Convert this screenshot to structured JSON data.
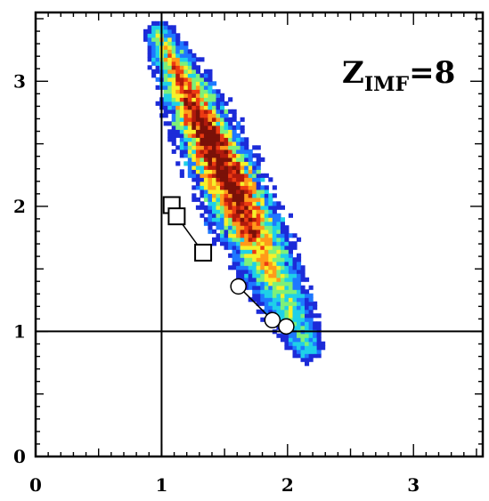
{
  "chart_data": {
    "type": "heatmap",
    "title": "",
    "xlabel": "",
    "ylabel": "",
    "xlim": [
      0,
      3.55
    ],
    "ylim": [
      0,
      3.55
    ],
    "x_ticks": [
      "0",
      "1",
      "2",
      "3"
    ],
    "y_ticks": [
      "0",
      "1",
      "2",
      "3"
    ],
    "reference_lines": {
      "x": 1,
      "y": 1
    },
    "annotation": {
      "main": "Z",
      "sub": "IMF",
      "tail": "=8",
      "position": "top-right"
    },
    "colormap": [
      "#1c2bd8",
      "#1e78ff",
      "#1fd0e8",
      "#7df07a",
      "#f6f02a",
      "#ff9a1a",
      "#ec3a12",
      "#b11a0c",
      "#7a1108"
    ],
    "density_axis": {
      "start": [
        0.97,
        3.35
      ],
      "end": [
        2.15,
        0.85
      ],
      "half_width": 0.19
    },
    "squares": {
      "color": "#000000",
      "points": [
        [
          1.08,
          2.01
        ],
        [
          1.12,
          1.92
        ],
        [
          1.33,
          1.63
        ]
      ]
    },
    "circles": {
      "color": "#000000",
      "points": [
        [
          1.61,
          1.36
        ],
        [
          1.88,
          1.09
        ],
        [
          1.99,
          1.04
        ]
      ]
    }
  }
}
